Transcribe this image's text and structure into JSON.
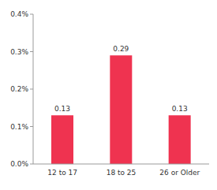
{
  "chart_data": {
    "type": "bar",
    "categories": [
      "12 to 17",
      "18 to 25",
      "26 or Older"
    ],
    "values": [
      0.13,
      0.29,
      0.13
    ],
    "color": "#ef3350",
    "ylim": [
      0,
      0.4
    ],
    "yticks": [
      {
        "value": 0,
        "label": "0.0%"
      },
      {
        "value": 0.1,
        "label": "0.1%"
      },
      {
        "value": 0.2,
        "label": "0.2%"
      },
      {
        "value": 0.3,
        "label": "0.3%"
      },
      {
        "value": 0.4,
        "label": "0.4%"
      }
    ],
    "grid": false,
    "data_labels": true
  }
}
